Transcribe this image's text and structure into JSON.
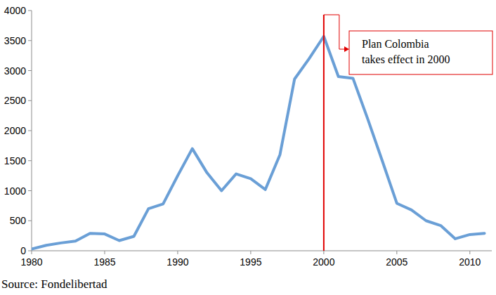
{
  "chart_data": {
    "type": "line",
    "x": [
      1980,
      1981,
      1982,
      1983,
      1984,
      1985,
      1986,
      1987,
      1988,
      1989,
      1990,
      1991,
      1992,
      1993,
      1994,
      1995,
      1996,
      1997,
      1998,
      1999,
      2000,
      2001,
      2002,
      2003,
      2004,
      2005,
      2006,
      2007,
      2008,
      2009,
      2010,
      2011
    ],
    "values": [
      30,
      90,
      130,
      160,
      290,
      280,
      170,
      240,
      700,
      780,
      1250,
      1700,
      1300,
      1000,
      1280,
      1200,
      1020,
      1600,
      2860,
      3200,
      3570,
      2900,
      2870,
      2200,
      1500,
      790,
      680,
      500,
      420,
      200,
      270,
      290
    ],
    "color": "#6a9fd6",
    "xlim": [
      1980,
      2011.5
    ],
    "xticks": [
      1980,
      1985,
      1990,
      1995,
      2000,
      2005,
      2010
    ],
    "ylim": [
      0,
      4000
    ],
    "yticks": [
      0,
      500,
      1000,
      1500,
      2000,
      2500,
      3000,
      3500,
      4000
    ],
    "grid": false,
    "annotations": [
      {
        "x": 2000,
        "color": "#e00000",
        "lines": [
          "Plan Colombia",
          "takes effect in 2000"
        ]
      }
    ],
    "source": "Source: Fondelibertad"
  }
}
